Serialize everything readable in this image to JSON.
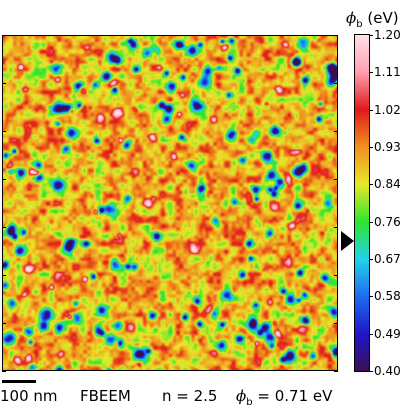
{
  "image": {
    "description_free": true,
    "colormap": [
      "#3b0f4f",
      "#1e16c8",
      "#1f6cf0",
      "#22d2e8",
      "#2ee52e",
      "#e8e82a",
      "#f0901f",
      "#e01a1a",
      "#ff9fb0",
      "#ffe0e6"
    ],
    "background_level": 0.67
  },
  "colorbar": {
    "title_symbol": "ϕ",
    "title_sub": "b",
    "title_unit": "(eV)",
    "ticks": [
      "1.20",
      "1.11",
      "1.02",
      "0.93",
      "0.84",
      "0.76",
      "0.67",
      "0.58",
      "0.49",
      "0.40"
    ],
    "min": 0.4,
    "max": 1.2,
    "marker_value": 0.71
  },
  "footer": {
    "scale_label": "100 nm",
    "mode": "FBEEM",
    "n_label": "n = 2.5",
    "phi_symbol": "ϕ",
    "phi_sub": "b",
    "phi_value": "= 0.71 eV"
  }
}
